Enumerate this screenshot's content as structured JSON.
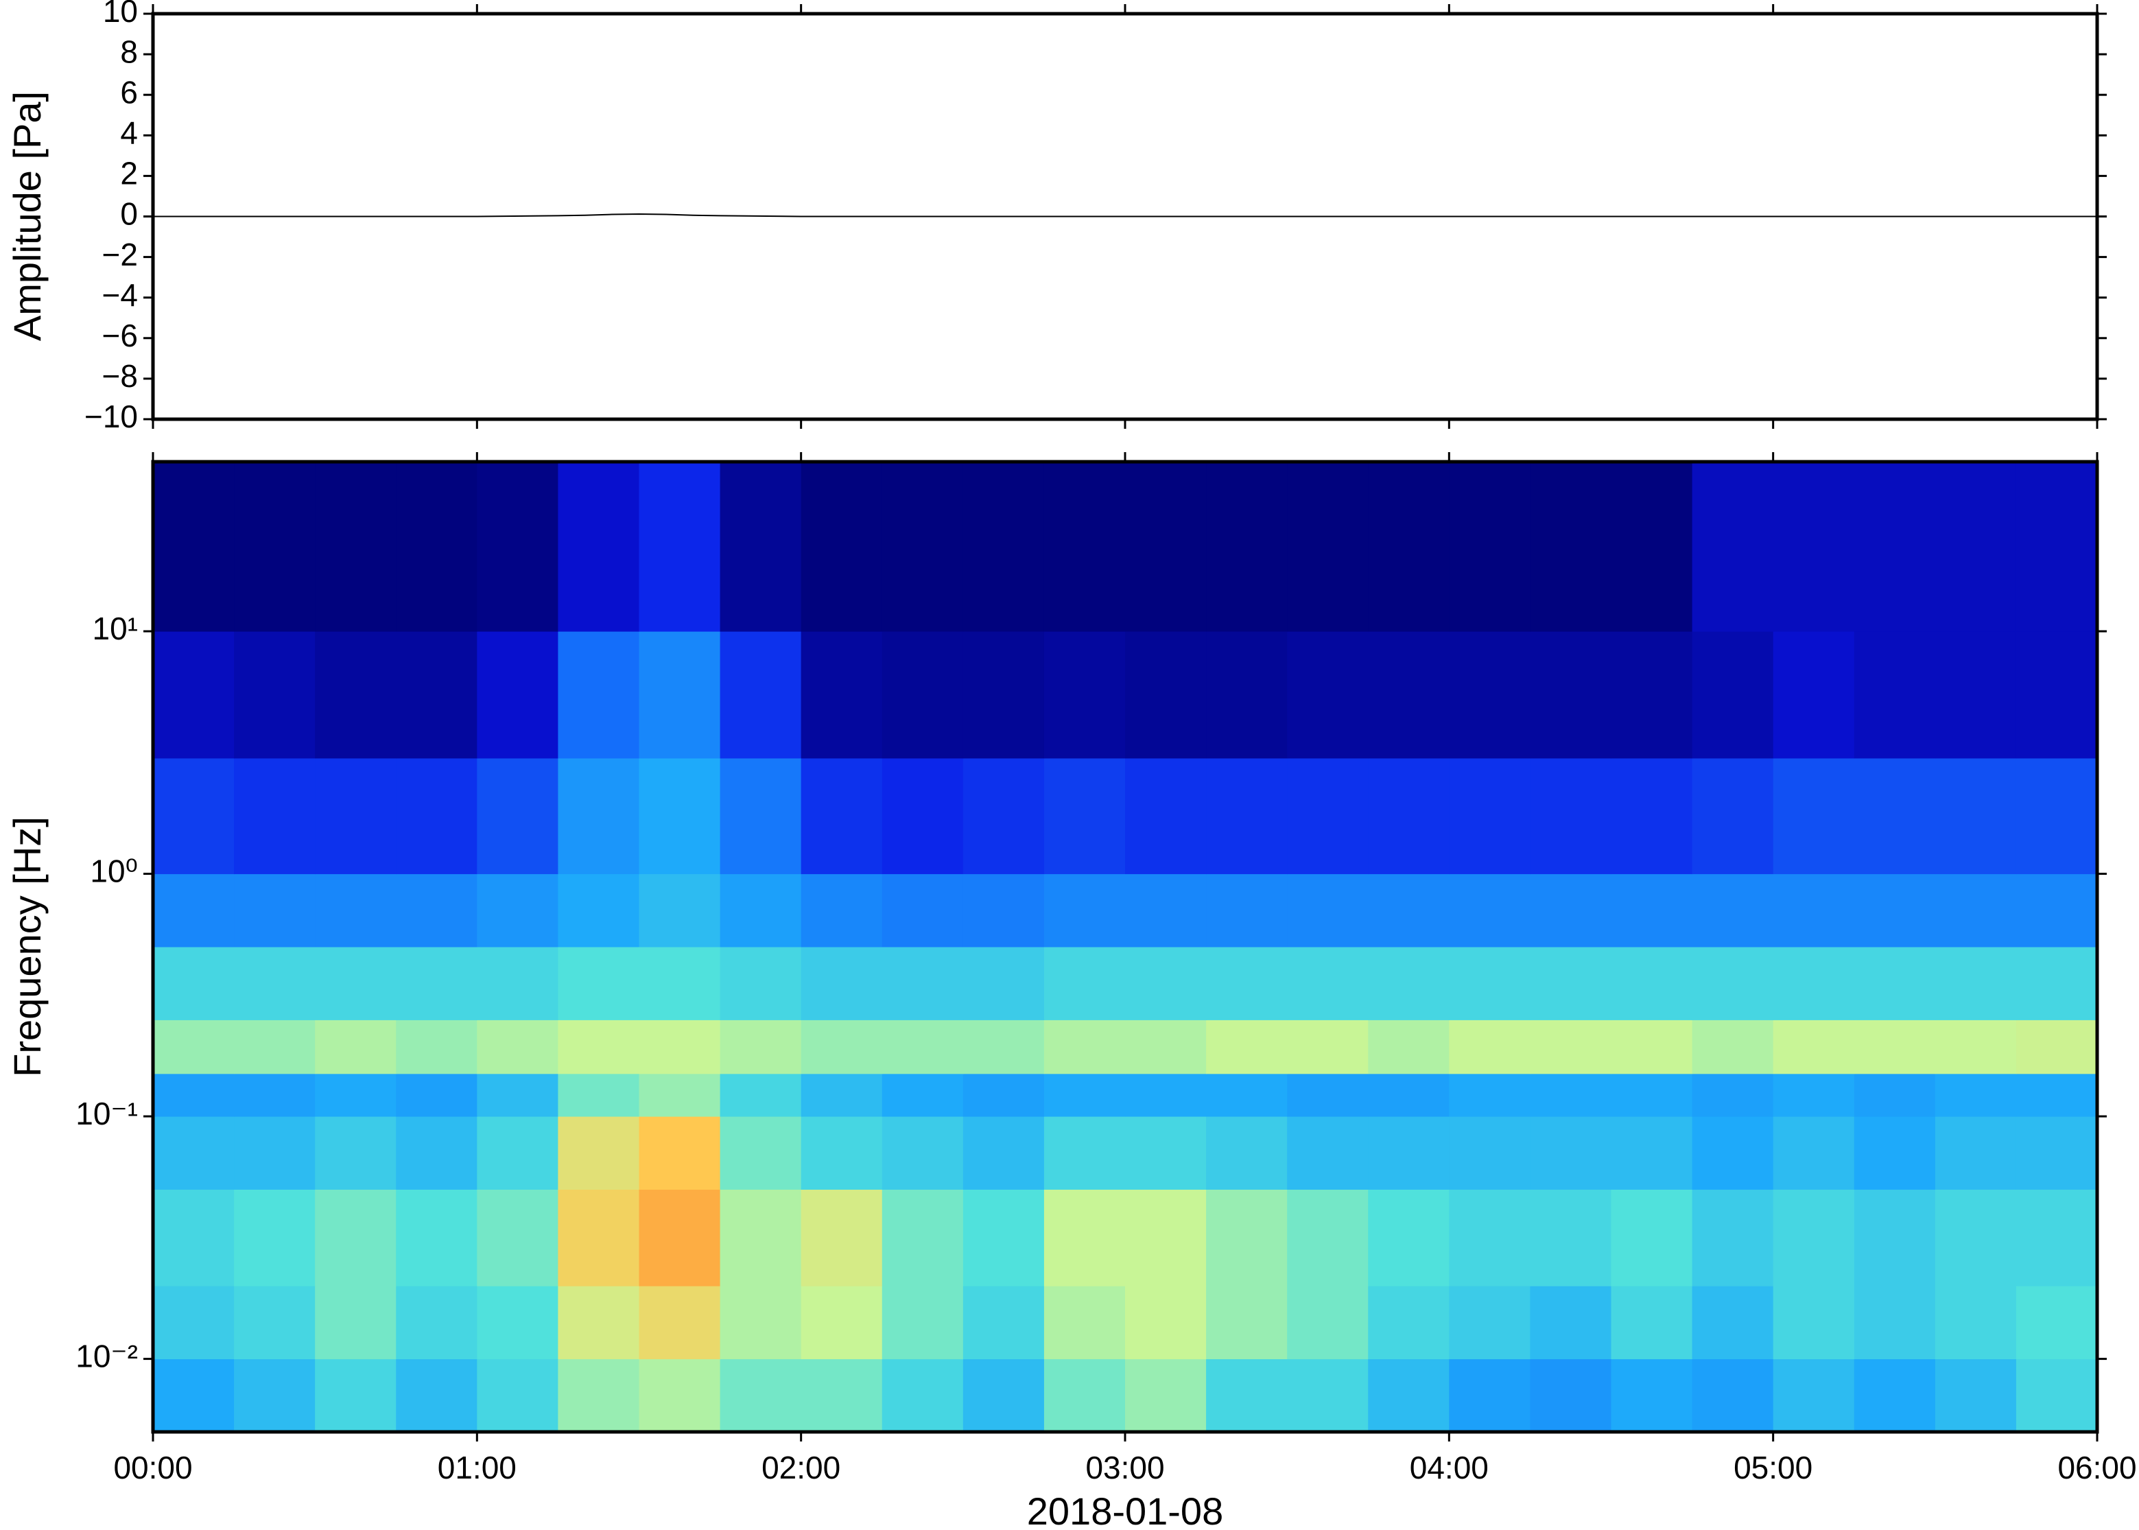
{
  "chart_data": [
    {
      "type": "line",
      "ylabel": "Amplitude [Pa]",
      "x": [
        0,
        15,
        30,
        45,
        60,
        75,
        80,
        85,
        90,
        95,
        100,
        105,
        120,
        135,
        150,
        165,
        180,
        195,
        210,
        225,
        240,
        255,
        270,
        285,
        300,
        315,
        330,
        345,
        360
      ],
      "values": [
        0,
        0,
        0,
        0,
        0,
        0.04,
        0.06,
        0.1,
        0.12,
        0.1,
        0.06,
        0.04,
        0,
        0,
        0,
        0,
        0,
        0,
        0,
        0,
        0,
        0,
        0,
        0,
        0,
        0,
        0,
        0,
        0
      ],
      "color": "#000000",
      "xlim": [
        0,
        360
      ],
      "xticks": [
        0,
        60,
        120,
        180,
        240,
        300,
        360
      ],
      "ylim": [
        -10,
        10
      ],
      "yticks": [
        {
          "value": -10,
          "label": "−10"
        },
        {
          "value": -8,
          "label": "−8"
        },
        {
          "value": -6,
          "label": "−6"
        },
        {
          "value": -4,
          "label": "−4"
        },
        {
          "value": -2,
          "label": "−2"
        },
        0,
        2,
        4,
        6,
        8,
        10
      ]
    },
    {
      "type": "heatmap",
      "ylabel": "Frequency [Hz]",
      "xlabel": "2018-01-08",
      "xbins": [
        0,
        15,
        30,
        45,
        60,
        75,
        90,
        105,
        120,
        135,
        150,
        165,
        180,
        195,
        210,
        225,
        240,
        255,
        270,
        285,
        300,
        315,
        330,
        345,
        360
      ],
      "ybins": [
        0.005,
        0.01,
        0.02,
        0.05,
        0.1,
        0.15,
        0.25,
        0.5,
        1,
        3,
        10,
        50
      ],
      "z": [
        [
          0.42,
          0.45,
          0.5,
          0.45,
          0.5,
          0.58,
          0.6,
          0.55,
          0.55,
          0.5,
          0.45,
          0.55,
          0.58,
          0.5,
          0.5,
          0.45,
          0.4,
          0.38,
          0.42,
          0.4,
          0.45,
          0.42,
          0.45,
          0.5
        ],
        [
          0.48,
          0.5,
          0.55,
          0.5,
          0.52,
          0.65,
          0.7,
          0.6,
          0.62,
          0.55,
          0.5,
          0.6,
          0.62,
          0.58,
          0.55,
          0.5,
          0.48,
          0.45,
          0.5,
          0.45,
          0.5,
          0.48,
          0.5,
          0.52
        ],
        [
          0.5,
          0.52,
          0.55,
          0.52,
          0.55,
          0.72,
          0.8,
          0.6,
          0.65,
          0.55,
          0.52,
          0.62,
          0.62,
          0.58,
          0.55,
          0.52,
          0.5,
          0.5,
          0.52,
          0.48,
          0.5,
          0.48,
          0.5,
          0.5
        ],
        [
          0.45,
          0.45,
          0.48,
          0.45,
          0.5,
          0.68,
          0.75,
          0.55,
          0.5,
          0.48,
          0.45,
          0.5,
          0.5,
          0.48,
          0.45,
          0.45,
          0.45,
          0.45,
          0.45,
          0.42,
          0.45,
          0.42,
          0.45,
          0.45
        ],
        [
          0.4,
          0.4,
          0.42,
          0.4,
          0.45,
          0.55,
          0.58,
          0.5,
          0.45,
          0.42,
          0.4,
          0.42,
          0.42,
          0.42,
          0.4,
          0.4,
          0.42,
          0.42,
          0.42,
          0.4,
          0.42,
          0.4,
          0.42,
          0.42
        ],
        [
          0.58,
          0.58,
          0.6,
          0.58,
          0.6,
          0.62,
          0.62,
          0.6,
          0.58,
          0.58,
          0.58,
          0.6,
          0.6,
          0.62,
          0.62,
          0.6,
          0.62,
          0.62,
          0.62,
          0.6,
          0.62,
          0.62,
          0.62,
          0.63
        ],
        [
          0.5,
          0.5,
          0.5,
          0.5,
          0.5,
          0.52,
          0.52,
          0.5,
          0.48,
          0.48,
          0.48,
          0.5,
          0.5,
          0.5,
          0.5,
          0.5,
          0.5,
          0.5,
          0.5,
          0.5,
          0.5,
          0.5,
          0.5,
          0.5
        ],
        [
          0.35,
          0.35,
          0.35,
          0.35,
          0.38,
          0.42,
          0.45,
          0.4,
          0.35,
          0.33,
          0.33,
          0.35,
          0.35,
          0.35,
          0.35,
          0.35,
          0.35,
          0.35,
          0.35,
          0.35,
          0.35,
          0.35,
          0.35,
          0.35
        ],
        [
          0.22,
          0.2,
          0.2,
          0.2,
          0.25,
          0.38,
          0.42,
          0.32,
          0.2,
          0.18,
          0.2,
          0.22,
          0.2,
          0.2,
          0.2,
          0.2,
          0.2,
          0.2,
          0.2,
          0.22,
          0.25,
          0.25,
          0.25,
          0.25
        ],
        [
          0.1,
          0.08,
          0.06,
          0.06,
          0.12,
          0.3,
          0.35,
          0.2,
          0.06,
          0.05,
          0.05,
          0.06,
          0.05,
          0.05,
          0.06,
          0.06,
          0.06,
          0.06,
          0.06,
          0.08,
          0.12,
          0.1,
          0.1,
          0.1
        ],
        [
          0.02,
          0.02,
          0.02,
          0.02,
          0.03,
          0.12,
          0.18,
          0.05,
          0.02,
          0.02,
          0.02,
          0.02,
          0.02,
          0.02,
          0.02,
          0.02,
          0.02,
          0.02,
          0.02,
          0.1,
          0.1,
          0.1,
          0.1,
          0.1
        ]
      ],
      "log_y": true,
      "xlim": [
        0,
        360
      ],
      "xticks": [
        {
          "value": 0,
          "label": "00:00"
        },
        {
          "value": 60,
          "label": "01:00"
        },
        {
          "value": 120,
          "label": "02:00"
        },
        {
          "value": 180,
          "label": "03:00"
        },
        {
          "value": 240,
          "label": "04:00"
        },
        {
          "value": 300,
          "label": "05:00"
        },
        {
          "value": 360,
          "label": "06:00"
        }
      ],
      "ylim": [
        0.005,
        50
      ],
      "yticks": [
        {
          "value": 0.01,
          "label": "10⁻²"
        },
        {
          "value": 0.1,
          "label": "10⁻¹"
        },
        {
          "value": 1,
          "label": "10⁰"
        },
        {
          "value": 10,
          "label": "10¹"
        }
      ]
    }
  ]
}
